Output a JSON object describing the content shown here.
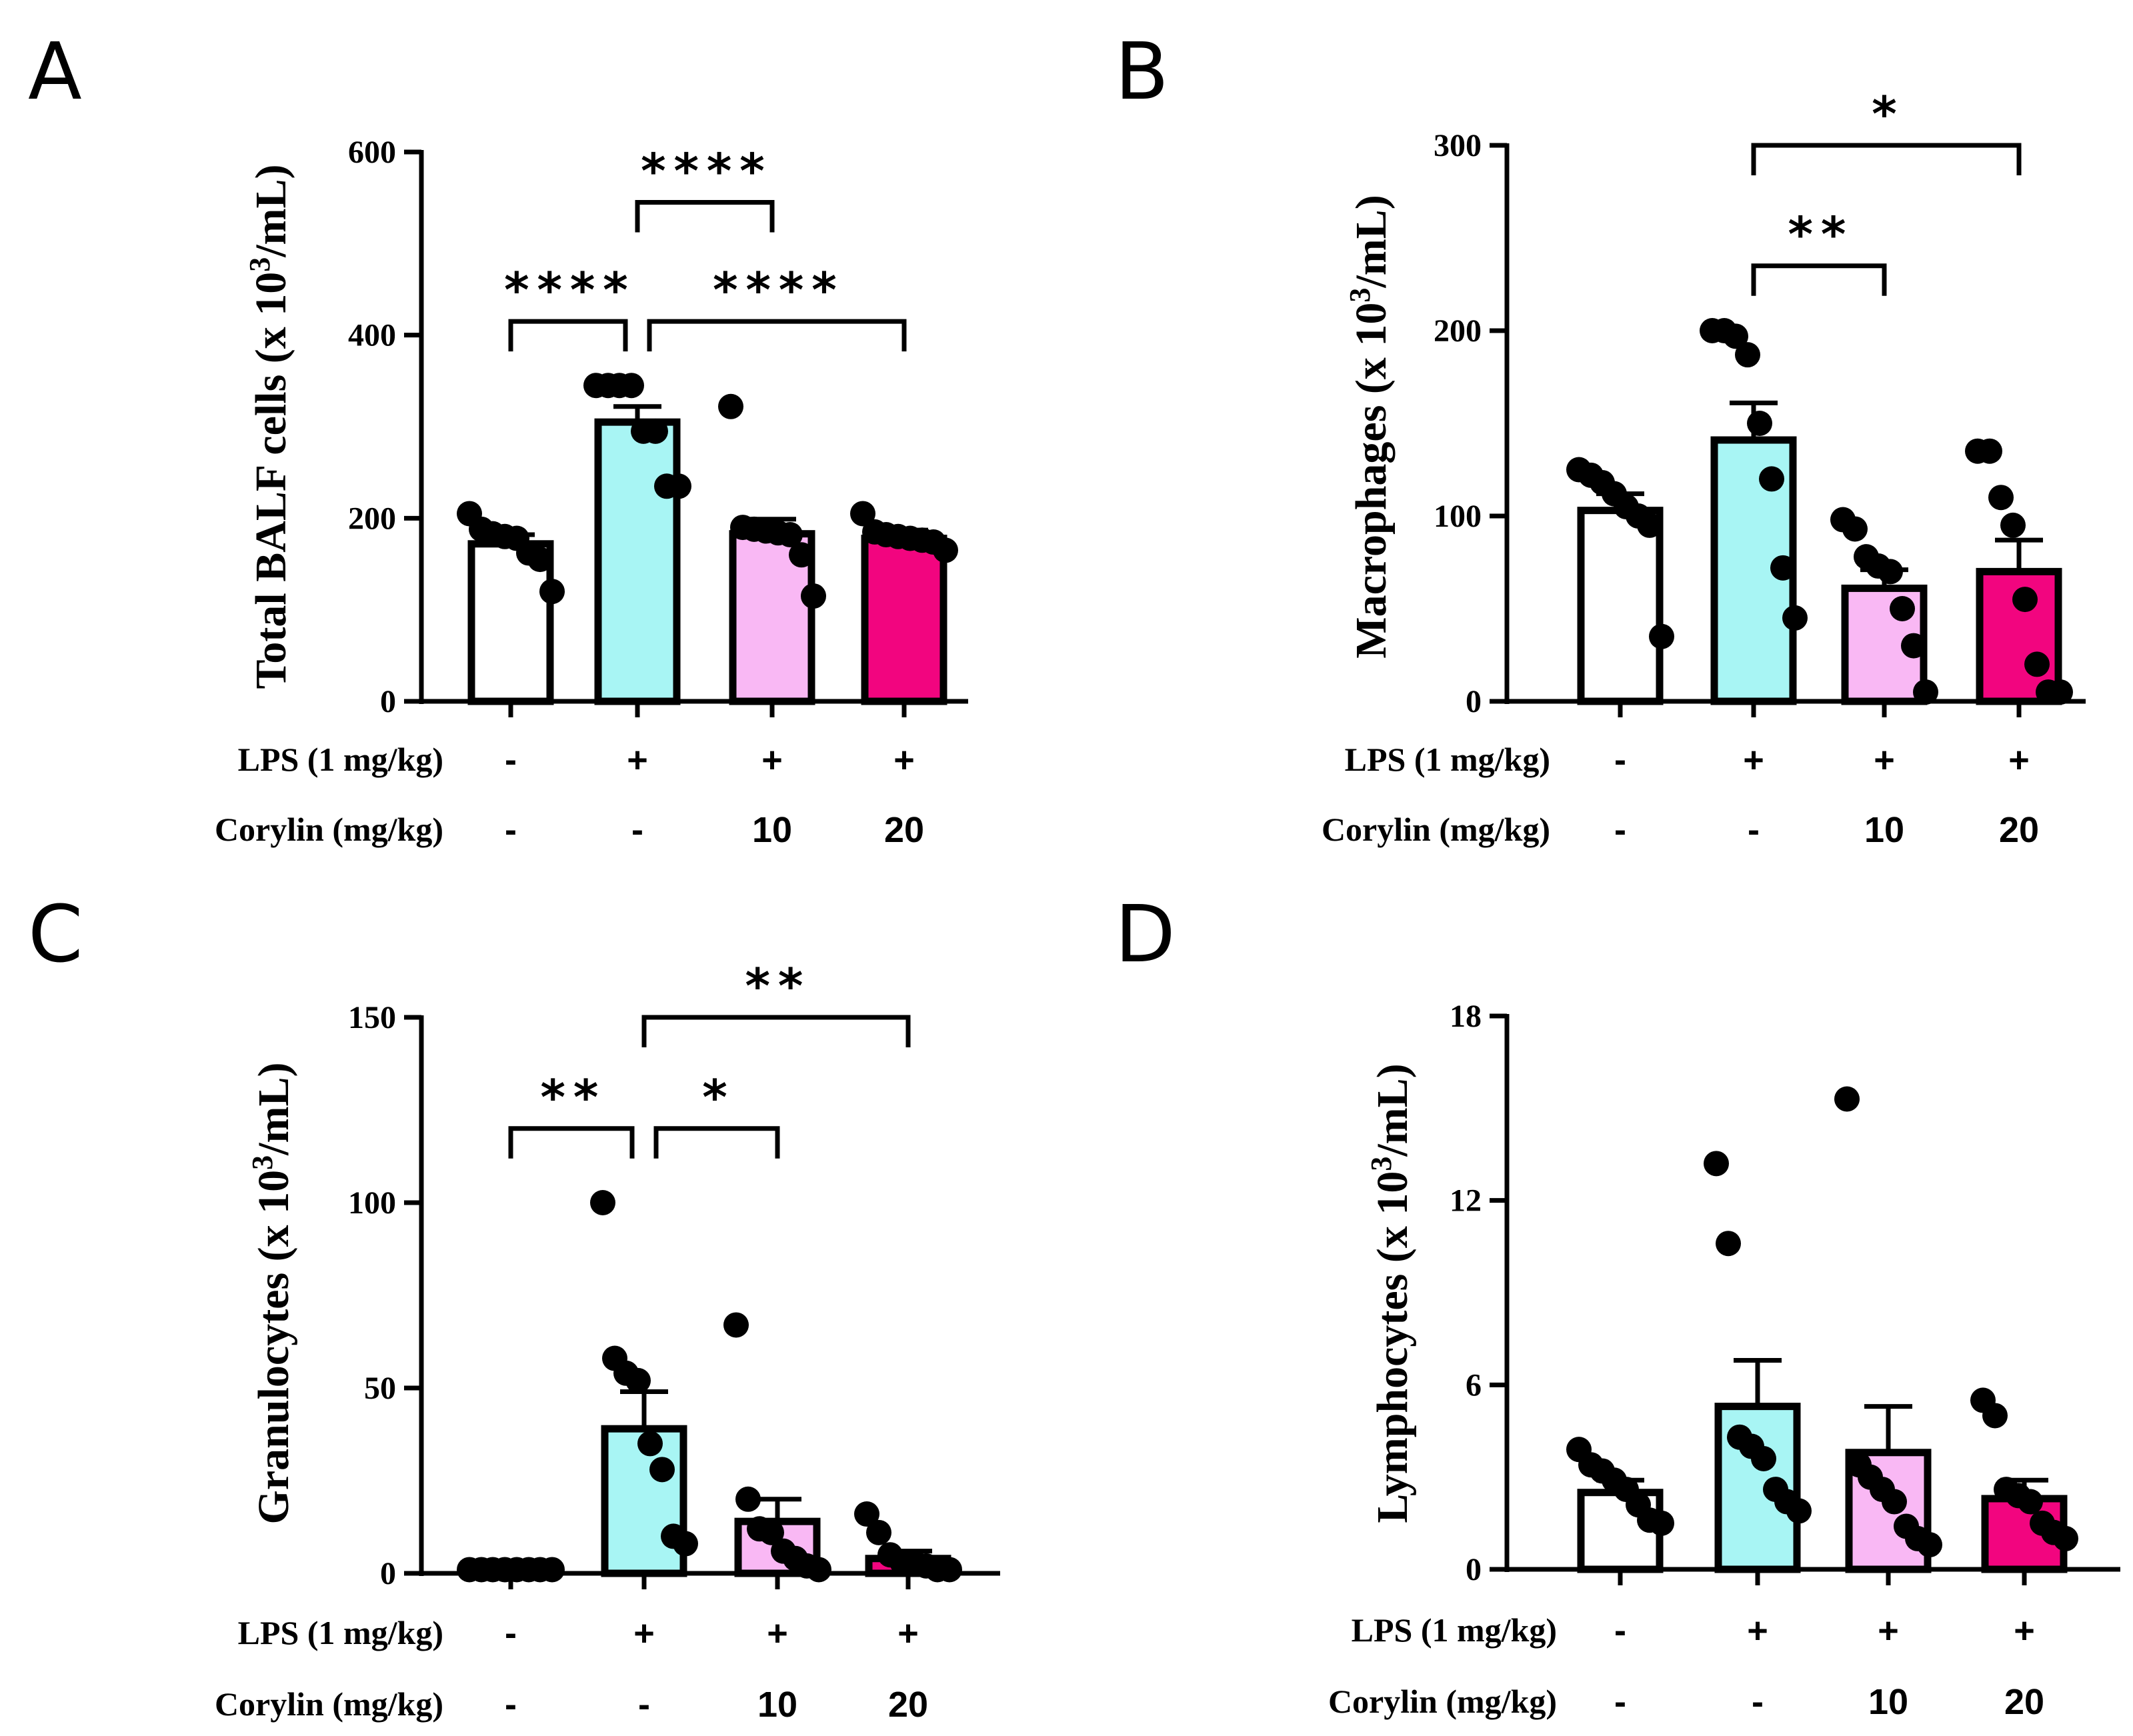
{
  "colors": {
    "control": "#ffffff",
    "lps": "#a8f5f4",
    "corylin10": "#f9b8f4",
    "corylin20": "#f2057f",
    "ink": "#000000"
  },
  "row_labels": {
    "lps": "LPS (1 mg/kg)",
    "corylin": "Corylin (mg/kg)"
  },
  "groups": [
    {
      "lps": "-",
      "corylin": "-"
    },
    {
      "lps": "+",
      "corylin": "-"
    },
    {
      "lps": "+",
      "corylin": "10"
    },
    {
      "lps": "+",
      "corylin": "20"
    }
  ],
  "chart_data": [
    {
      "panel": "A",
      "type": "bar",
      "ylabel_main": "Total BALF cells (x 10",
      "ylabel_exp": "3",
      "ylabel_tail": "/mL)",
      "ylim": [
        0,
        600
      ],
      "yticks": [
        0,
        200,
        400,
        600
      ],
      "means": [
        172,
        305,
        183,
        178
      ],
      "sem": [
        10,
        17,
        16,
        9
      ],
      "points": [
        [
          205,
          188,
          183,
          180,
          178,
          162,
          155,
          120
        ],
        [
          345,
          345,
          345,
          345,
          295,
          295,
          235,
          235
        ],
        [
          322,
          190,
          188,
          186,
          184,
          182,
          160,
          115
        ],
        [
          205,
          185,
          182,
          180,
          178,
          176,
          174,
          165
        ]
      ],
      "brackets": [
        {
          "from": 1,
          "to": 2,
          "level": 545,
          "label": "****"
        },
        {
          "from": 0,
          "to": 1,
          "level": 415,
          "label": "****"
        },
        {
          "from": 1,
          "to": 3,
          "level": 415,
          "label": "****"
        }
      ]
    },
    {
      "panel": "B",
      "type": "bar",
      "ylabel_main": "Macrophages (x 10",
      "ylabel_exp": "3",
      "ylabel_tail": "/mL)",
      "ylim": [
        0,
        300
      ],
      "yticks": [
        0,
        100,
        200,
        300
      ],
      "means": [
        103,
        141,
        61,
        70
      ],
      "sem": [
        9,
        20,
        10,
        17
      ],
      "points": [
        [
          125,
          122,
          118,
          112,
          105,
          100,
          95,
          35
        ],
        [
          200,
          200,
          197,
          187,
          150,
          120,
          72,
          45
        ],
        [
          98,
          93,
          78,
          73,
          70,
          50,
          30,
          5
        ],
        [
          135,
          135,
          110,
          95,
          55,
          20,
          5,
          5
        ]
      ],
      "brackets": [
        {
          "from": 1,
          "to": 3,
          "level": 300,
          "label": "*"
        },
        {
          "from": 1,
          "to": 2,
          "level": 235,
          "label": "**"
        }
      ]
    },
    {
      "panel": "C",
      "type": "bar",
      "ylabel_main": "Granulocytes (x 10",
      "ylabel_exp": "3",
      "ylabel_tail": "/mL)",
      "ylim": [
        0,
        150
      ],
      "yticks": [
        0,
        50,
        100,
        150
      ],
      "means": [
        1,
        39,
        14,
        4
      ],
      "sem": [
        0.3,
        10,
        6,
        2
      ],
      "points": [
        [
          1,
          1,
          1,
          1,
          1,
          1,
          1,
          1
        ],
        [
          100,
          58,
          54,
          52,
          35,
          28,
          10,
          8
        ],
        [
          67,
          20,
          12,
          11,
          6,
          4,
          2,
          1
        ],
        [
          16,
          11,
          5,
          3,
          3,
          2,
          1,
          1
        ]
      ],
      "brackets": [
        {
          "from": 1,
          "to": 3,
          "level": 150,
          "label": "**"
        },
        {
          "from": 0,
          "to": 1,
          "level": 120,
          "label": "**"
        },
        {
          "from": 1,
          "to": 2,
          "level": 120,
          "label": "*"
        }
      ]
    },
    {
      "panel": "D",
      "type": "bar",
      "ylabel_main": "Lymphocytes (x 10",
      "ylabel_exp": "3",
      "ylabel_tail": "/mL)",
      "ylim": [
        0,
        18
      ],
      "yticks": [
        0,
        6,
        12,
        18
      ],
      "means": [
        2.5,
        5.3,
        3.8,
        2.3
      ],
      "sem": [
        0.4,
        1.5,
        1.5,
        0.6
      ],
      "points": [
        [
          3.9,
          3.4,
          3.2,
          2.9,
          2.6,
          2.1,
          1.6,
          1.5
        ],
        [
          13.2,
          10.6,
          4.3,
          4.0,
          3.6,
          2.6,
          2.2,
          1.9
        ],
        [
          15.3,
          3.4,
          3.0,
          2.6,
          2.2,
          1.4,
          1.0,
          0.8
        ],
        [
          5.5,
          5.0,
          2.6,
          2.4,
          2.2,
          1.5,
          1.2,
          1.0
        ]
      ],
      "brackets": []
    }
  ]
}
